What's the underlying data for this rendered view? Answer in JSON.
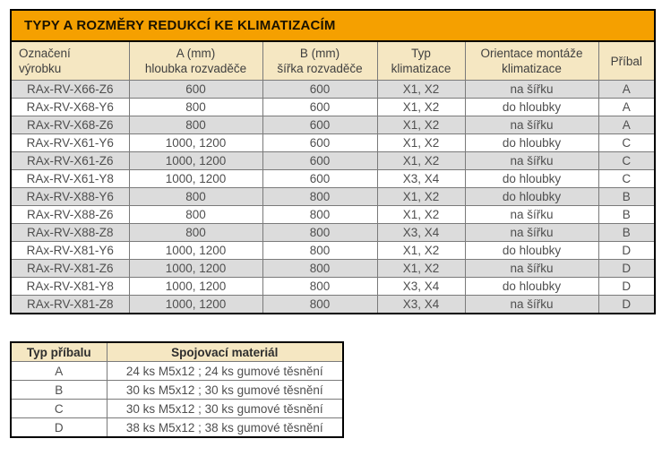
{
  "title": "TYPY A ROZMĚRY REDUKCÍ KE KLIMATIZACÍM",
  "colors": {
    "title_orange": "#F5A000",
    "header_cream": "#F5E7C2",
    "row_gray": "#DCDCDC",
    "outer_border": "#000000",
    "inner_border": "#7a7a7a"
  },
  "main_table": {
    "headers": [
      {
        "lines": [
          "Označení",
          "výrobku"
        ]
      },
      {
        "lines": [
          "A (mm)",
          "hloubka rozvaděče"
        ]
      },
      {
        "lines": [
          "B (mm)",
          "šířka rozvaděče"
        ]
      },
      {
        "lines": [
          "Typ",
          "klimatizace"
        ]
      },
      {
        "lines": [
          "Orientace montáže",
          "klimatizace"
        ]
      },
      {
        "lines": [
          "Příbal"
        ]
      }
    ],
    "rows": [
      [
        "RAx-RV-X66-Z6",
        "600",
        "600",
        "X1, X2",
        "na šířku",
        "A"
      ],
      [
        "RAx-RV-X68-Y6",
        "800",
        "600",
        "X1, X2",
        "do hloubky",
        "A"
      ],
      [
        "RAx-RV-X68-Z6",
        "800",
        "600",
        "X1, X2",
        "na šířku",
        "A"
      ],
      [
        "RAx-RV-X61-Y6",
        "1000, 1200",
        "600",
        "X1, X2",
        "do hloubky",
        "C"
      ],
      [
        "RAx-RV-X61-Z6",
        "1000, 1200",
        "600",
        "X1, X2",
        "na šířku",
        "C"
      ],
      [
        "RAx-RV-X61-Y8",
        "1000, 1200",
        "600",
        "X3, X4",
        "do hloubky",
        "C"
      ],
      [
        "RAx-RV-X88-Y6",
        "800",
        "800",
        "X1, X2",
        "do hloubky",
        "B"
      ],
      [
        "RAx-RV-X88-Z6",
        "800",
        "800",
        "X1, X2",
        "na šířku",
        "B"
      ],
      [
        "RAx-RV-X88-Z8",
        "800",
        "800",
        "X3, X4",
        "na šířku",
        "B"
      ],
      [
        "RAx-RV-X81-Y6",
        "1000, 1200",
        "800",
        "X1, X2",
        "do hloubky",
        "D"
      ],
      [
        "RAx-RV-X81-Z6",
        "1000, 1200",
        "800",
        "X1, X2",
        "na šířku",
        "D"
      ],
      [
        "RAx-RV-X81-Y8",
        "1000, 1200",
        "800",
        "X3, X4",
        "do hloubky",
        "D"
      ],
      [
        "RAx-RV-X81-Z8",
        "1000, 1200",
        "800",
        "X3, X4",
        "na šířku",
        "D"
      ]
    ]
  },
  "accessory_table": {
    "headers": [
      "Typ příbalu",
      "Spojovací materiál"
    ],
    "rows": [
      [
        "A",
        "24 ks M5x12 ; 24 ks gumové těsnění"
      ],
      [
        "B",
        "30 ks M5x12 ; 30 ks gumové těsnění"
      ],
      [
        "C",
        "30 ks M5x12 ; 30 ks gumové těsnění"
      ],
      [
        "D",
        "38 ks M5x12 ; 38 ks gumové těsnění"
      ]
    ]
  }
}
